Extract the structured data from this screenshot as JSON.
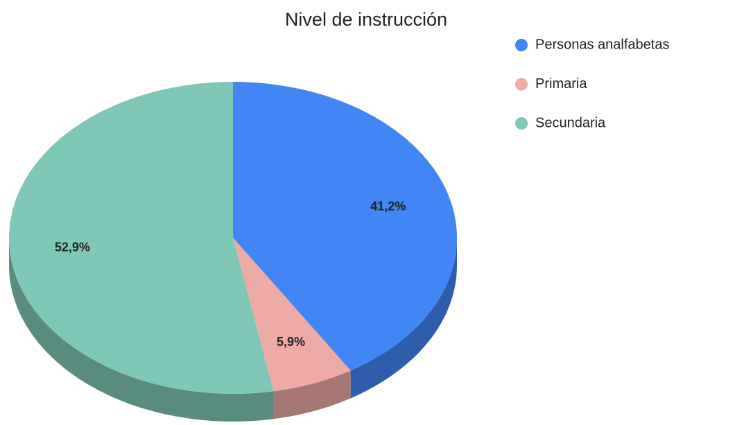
{
  "chart_data": {
    "type": "pie",
    "title": "Nivel de instrucción",
    "categories": [
      "Personas analfabetas",
      "Primaria",
      "Secundaria"
    ],
    "values": [
      41.2,
      5.9,
      52.9
    ],
    "value_labels": [
      "41,2%",
      "5,9%",
      "52,9%"
    ],
    "colors": [
      "#4285f4",
      "#eeaaa4",
      "#7fc7b6"
    ],
    "three_d": true,
    "legend": "right"
  }
}
